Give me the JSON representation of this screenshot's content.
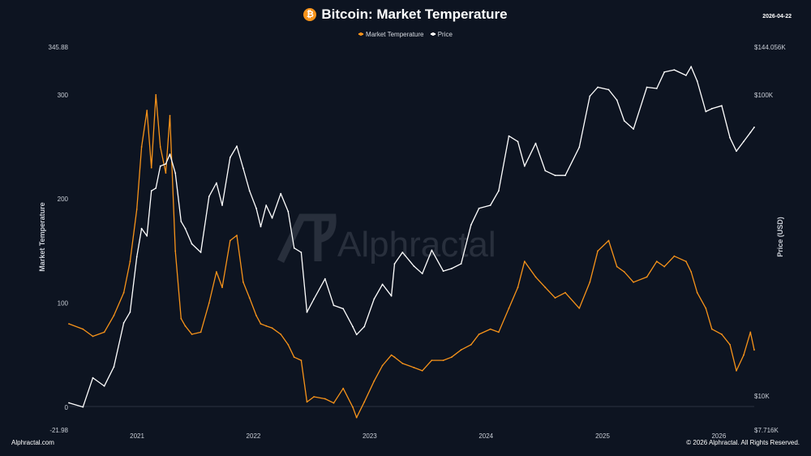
{
  "header": {
    "title": "Bitcoin: Market Temperature",
    "date": "2026-04-22",
    "icon": "bitcoin-icon"
  },
  "footer": {
    "left": "Alphractal.com",
    "right": "© 2026 Alphractal. All Rights Reserved."
  },
  "watermark": "Alphractal",
  "colors": {
    "background": "#0d1421",
    "temperature": "#f7931a",
    "price": "#ffffff"
  },
  "chart_data": {
    "type": "line",
    "title": "Bitcoin: Market Temperature",
    "legend_position": "top-center",
    "grid": false,
    "x_axis": {
      "type": "date",
      "range": [
        "2020-06-01",
        "2026-04-22"
      ],
      "ticks": [
        {
          "date": "2021-01-01",
          "label": "2021"
        },
        {
          "date": "2022-01-01",
          "label": "2022"
        },
        {
          "date": "2023-01-01",
          "label": "2023"
        },
        {
          "date": "2024-01-01",
          "label": "2024"
        },
        {
          "date": "2025-01-01",
          "label": "2025"
        },
        {
          "date": "2026-01-01",
          "label": "2026"
        }
      ]
    },
    "y_left": {
      "label": "Market Temperature",
      "range": [
        -21.98,
        345.88
      ],
      "ticks": [
        {
          "value": -21.98,
          "label": "-21.98"
        },
        {
          "value": 0,
          "label": "0"
        },
        {
          "value": 100,
          "label": "100"
        },
        {
          "value": 200,
          "label": "200"
        },
        {
          "value": 300,
          "label": "300"
        },
        {
          "value": 345.88,
          "label": "345.88"
        }
      ]
    },
    "y_right": {
      "label": "Price (USD)",
      "scale": "log",
      "range": [
        7716,
        144056
      ],
      "ticks": [
        {
          "value": 7716,
          "label": "$7.716K"
        },
        {
          "value": 10000,
          "label": "$10K"
        },
        {
          "value": 100000,
          "label": "$100K"
        },
        {
          "value": 144056,
          "label": "$144.056K"
        }
      ]
    },
    "series": [
      {
        "name": "Market Temperature",
        "axis": "left",
        "color": "#f7931a",
        "x": [
          "2020-06-01",
          "2020-07-15",
          "2020-08-15",
          "2020-09-20",
          "2020-10-20",
          "2020-11-20",
          "2020-12-10",
          "2020-12-31",
          "2021-01-15",
          "2021-02-01",
          "2021-02-15",
          "2021-03-01",
          "2021-03-15",
          "2021-04-01",
          "2021-04-14",
          "2021-05-01",
          "2021-05-19",
          "2021-06-01",
          "2021-06-22",
          "2021-07-20",
          "2021-08-15",
          "2021-09-07",
          "2021-09-25",
          "2021-10-20",
          "2021-11-10",
          "2021-11-30",
          "2021-12-20",
          "2022-01-10",
          "2022-01-24",
          "2022-02-10",
          "2022-03-01",
          "2022-03-28",
          "2022-04-20",
          "2022-05-09",
          "2022-05-31",
          "2022-06-18",
          "2022-07-10",
          "2022-08-14",
          "2022-09-10",
          "2022-10-10",
          "2022-11-09",
          "2022-11-21",
          "2022-12-15",
          "2023-01-15",
          "2023-02-10",
          "2023-03-10",
          "2023-03-20",
          "2023-04-14",
          "2023-05-20",
          "2023-06-15",
          "2023-07-15",
          "2023-08-20",
          "2023-09-15",
          "2023-10-15",
          "2023-11-15",
          "2023-12-10",
          "2024-01-15",
          "2024-02-10",
          "2024-03-13",
          "2024-04-10",
          "2024-05-01",
          "2024-06-05",
          "2024-07-05",
          "2024-08-05",
          "2024-09-06",
          "2024-10-20",
          "2024-11-22",
          "2024-12-17",
          "2025-01-20",
          "2025-02-15",
          "2025-03-10",
          "2025-04-08",
          "2025-05-20",
          "2025-06-20",
          "2025-07-14",
          "2025-08-14",
          "2025-09-20",
          "2025-10-06",
          "2025-10-25",
          "2025-11-21",
          "2025-12-10",
          "2026-01-10",
          "2026-02-05",
          "2026-02-25",
          "2026-03-20",
          "2026-04-10",
          "2026-04-22"
        ],
        "values": [
          80,
          75,
          68,
          72,
          88,
          110,
          140,
          190,
          250,
          285,
          230,
          300,
          250,
          225,
          280,
          150,
          85,
          78,
          70,
          72,
          100,
          130,
          115,
          160,
          165,
          120,
          105,
          88,
          80,
          78,
          76,
          70,
          60,
          48,
          45,
          5,
          10,
          8,
          4,
          18,
          0,
          -10,
          5,
          25,
          40,
          50,
          48,
          42,
          38,
          35,
          45,
          45,
          48,
          55,
          60,
          70,
          75,
          72,
          95,
          115,
          140,
          125,
          115,
          105,
          110,
          95,
          120,
          150,
          160,
          135,
          130,
          120,
          125,
          140,
          135,
          145,
          140,
          130,
          110,
          95,
          75,
          70,
          60,
          35,
          50,
          72,
          55
        ]
      },
      {
        "name": "Price",
        "axis": "right",
        "color": "#ffffff",
        "x": [
          "2020-06-01",
          "2020-07-15",
          "2020-08-15",
          "2020-09-20",
          "2020-10-20",
          "2020-11-20",
          "2020-12-10",
          "2020-12-31",
          "2021-01-15",
          "2021-02-01",
          "2021-02-15",
          "2021-03-01",
          "2021-03-15",
          "2021-04-01",
          "2021-04-14",
          "2021-05-01",
          "2021-05-19",
          "2021-06-01",
          "2021-06-22",
          "2021-07-20",
          "2021-08-15",
          "2021-09-07",
          "2021-09-25",
          "2021-10-20",
          "2021-11-10",
          "2021-11-30",
          "2021-12-20",
          "2022-01-10",
          "2022-01-24",
          "2022-02-10",
          "2022-03-01",
          "2022-03-28",
          "2022-04-20",
          "2022-05-09",
          "2022-05-31",
          "2022-06-18",
          "2022-07-10",
          "2022-08-14",
          "2022-09-10",
          "2022-10-10",
          "2022-11-09",
          "2022-11-21",
          "2022-12-15",
          "2023-01-15",
          "2023-02-10",
          "2023-03-10",
          "2023-03-20",
          "2023-04-14",
          "2023-05-20",
          "2023-06-15",
          "2023-07-15",
          "2023-08-20",
          "2023-09-15",
          "2023-10-15",
          "2023-11-15",
          "2023-12-10",
          "2024-01-15",
          "2024-02-10",
          "2024-03-13",
          "2024-04-10",
          "2024-05-01",
          "2024-06-05",
          "2024-07-05",
          "2024-08-05",
          "2024-09-06",
          "2024-10-20",
          "2024-11-22",
          "2024-12-17",
          "2025-01-20",
          "2025-02-15",
          "2025-03-10",
          "2025-04-08",
          "2025-05-20",
          "2025-06-20",
          "2025-07-14",
          "2025-08-14",
          "2025-09-20",
          "2025-10-06",
          "2025-10-25",
          "2025-11-21",
          "2025-12-10",
          "2026-01-10",
          "2026-02-05",
          "2026-02-25",
          "2026-03-20",
          "2026-04-10",
          "2026-04-22"
        ],
        "values": [
          9500,
          9200,
          11500,
          10800,
          12500,
          17500,
          19000,
          29000,
          36000,
          34000,
          48000,
          49000,
          58000,
          59000,
          63500,
          55000,
          38000,
          36000,
          32000,
          30000,
          46000,
          51000,
          43000,
          62000,
          67500,
          57000,
          48000,
          42000,
          36500,
          43000,
          39000,
          47000,
          41000,
          31000,
          30000,
          19000,
          21000,
          24500,
          20000,
          19500,
          17000,
          16000,
          17000,
          21000,
          23500,
          21500,
          27500,
          30000,
          27000,
          25500,
          30500,
          26000,
          26500,
          27500,
          37000,
          42000,
          43000,
          48000,
          73000,
          70000,
          58000,
          69000,
          56000,
          54000,
          54000,
          67000,
          99000,
          106000,
          104000,
          96000,
          82000,
          77000,
          106000,
          105000,
          119000,
          121000,
          116000,
          124000,
          111000,
          88000,
          90000,
          92000,
          72000,
          65000,
          70000,
          75000,
          78000
        ]
      }
    ]
  }
}
